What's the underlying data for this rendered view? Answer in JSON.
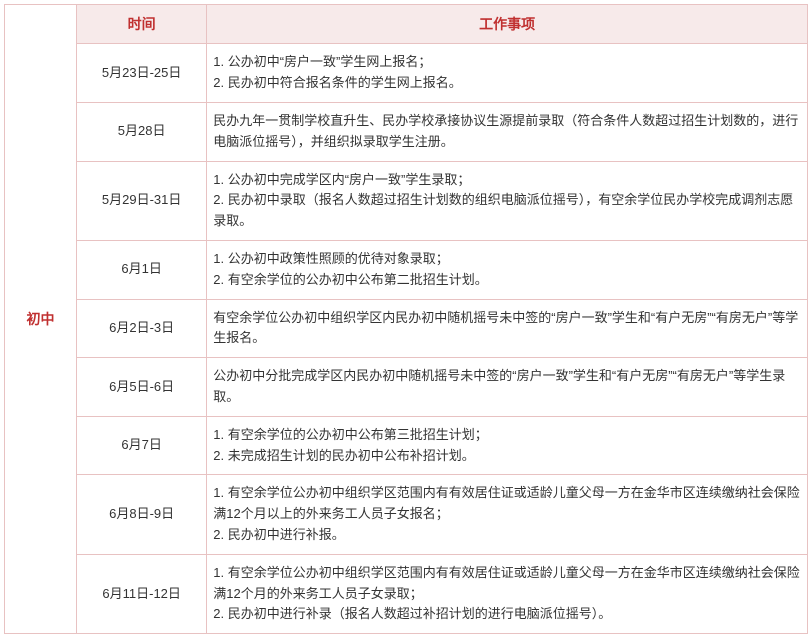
{
  "header": {
    "time_label": "时间",
    "task_label": "工作事项"
  },
  "category_label": "初中",
  "rows": [
    {
      "time": "5月23日-25日",
      "tasks": [
        "1. 公办初中“房户一致”学生网上报名；",
        "2. 民办初中符合报名条件的学生网上报名。"
      ]
    },
    {
      "time": "5月28日",
      "tasks": [
        "民办九年一贯制学校直升生、民办学校承接协议生源提前录取（符合条件人数超过招生计划数的，进行电脑派位摇号），并组织拟录取学生注册。"
      ]
    },
    {
      "time": "5月29日-31日",
      "tasks": [
        "1. 公办初中完成学区内“房户一致”学生录取；",
        "2. 民办初中录取（报名人数超过招生计划数的组织电脑派位摇号），有空余学位民办学校完成调剂志愿录取。"
      ]
    },
    {
      "time": "6月1日",
      "tasks": [
        "1. 公办初中政策性照顾的优待对象录取；",
        "2. 有空余学位的公办初中公布第二批招生计划。"
      ]
    },
    {
      "time": "6月2日-3日",
      "tasks": [
        "有空余学位公办初中组织学区内民办初中随机摇号未中签的“房户一致”学生和“有户无房”“有房无户”等学生报名。"
      ]
    },
    {
      "time": "6月5日-6日",
      "tasks": [
        "公办初中分批完成学区内民办初中随机摇号未中签的“房户一致”学生和“有户无房”“有房无户”等学生录取。"
      ]
    },
    {
      "time": "6月7日",
      "tasks": [
        "1. 有空余学位的公办初中公布第三批招生计划；",
        "2. 未完成招生计划的民办初中公布补招计划。"
      ]
    },
    {
      "time": "6月8日-9日",
      "tasks": [
        "1. 有空余学位公办初中组织学区范围内有有效居住证或适龄儿童父母一方在金华市区连续缴纳社会保险满12个月以上的外来务工人员子女报名；",
        "2. 民办初中进行补报。"
      ]
    },
    {
      "time": "6月11日-12日",
      "tasks": [
        "1. 有空余学位公办初中组织学区范围内有有效居住证或适龄儿童父母一方在金华市区连续缴纳社会保险满12个月的外来务工人员子女录取；",
        "2. 民办初中进行补录（报名人数超过补招计划的进行电脑派位摇号）。"
      ]
    }
  ]
}
